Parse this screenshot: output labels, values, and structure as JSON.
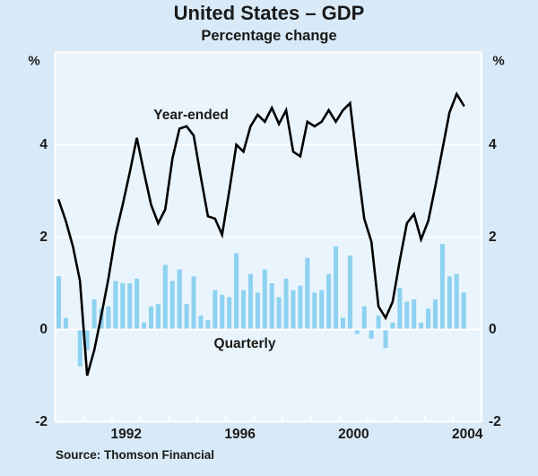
{
  "title": "United States – GDP",
  "subtitle": "Percentage change",
  "source": "Source: Thomson Financial",
  "series_labels": {
    "line": "Year-ended",
    "bars": "Quarterly"
  },
  "axis": {
    "unit_left": "%",
    "unit_right": "%",
    "yticks": [
      {
        "value": 4,
        "label": "4"
      },
      {
        "value": 2,
        "label": "2"
      },
      {
        "value": 0,
        "label": "0"
      },
      {
        "value": -2,
        "label": "-2"
      }
    ],
    "xticks": [
      {
        "year": 1992,
        "label": "1992"
      },
      {
        "year": 1996,
        "label": "1996"
      },
      {
        "year": 2000,
        "label": "2000"
      },
      {
        "year": 2004,
        "label": "2004"
      }
    ]
  },
  "colors": {
    "outer_background": "#d8eaf7",
    "plot_background": "#eaf4fc",
    "gridline": "#ffffff",
    "bar": "#8dd2f0",
    "line": "#000000",
    "text": "#1a1a1a"
  },
  "chart_data": {
    "type": "line+bar",
    "title": "United States – GDP",
    "subtitle": "Percentage change",
    "xlim": [
      1990,
      2005
    ],
    "ylim": [
      -2,
      6
    ],
    "gridlines_y": [
      4,
      2,
      0
    ],
    "x_tick_every_year": true,
    "x_label_years": [
      1992,
      1996,
      2000,
      2004
    ],
    "x_first": 1990.125,
    "x_step": 0.25,
    "quarters": "1990Q1 to 2004Q2",
    "series": [
      {
        "name": "Year-ended",
        "type": "line",
        "color": "#000000",
        "values": [
          2.8,
          2.35,
          1.8,
          1.05,
          -1.0,
          -0.45,
          0.3,
          1.1,
          2.05,
          2.7,
          3.4,
          4.15,
          3.4,
          2.7,
          2.3,
          2.6,
          3.7,
          4.35,
          4.4,
          4.2,
          3.3,
          2.45,
          2.4,
          2.05,
          3.0,
          4.0,
          3.85,
          4.4,
          4.65,
          4.5,
          4.8,
          4.45,
          4.75,
          3.85,
          3.75,
          4.5,
          4.4,
          4.5,
          4.75,
          4.5,
          4.75,
          4.9,
          3.6,
          2.4,
          1.9,
          0.5,
          0.25,
          0.6,
          1.5,
          2.3,
          2.5,
          1.95,
          2.35,
          3.1,
          3.9,
          4.7,
          5.1,
          4.85
        ]
      },
      {
        "name": "Quarterly",
        "type": "bar",
        "color": "#8dd2f0",
        "values": [
          1.15,
          0.25,
          0.0,
          -0.8,
          -0.45,
          0.65,
          0.45,
          0.5,
          1.05,
          1.0,
          1.0,
          1.1,
          0.15,
          0.5,
          0.55,
          1.4,
          1.05,
          1.3,
          0.55,
          1.15,
          0.3,
          0.2,
          0.85,
          0.75,
          0.7,
          1.65,
          0.85,
          1.2,
          0.8,
          1.3,
          1.0,
          0.7,
          1.1,
          0.85,
          0.95,
          1.55,
          0.8,
          0.85,
          1.2,
          1.8,
          0.25,
          1.6,
          -0.1,
          0.5,
          -0.2,
          0.3,
          -0.4,
          0.15,
          0.9,
          0.6,
          0.65,
          0.15,
          0.45,
          0.65,
          1.85,
          1.15,
          1.2,
          0.8
        ]
      }
    ]
  }
}
